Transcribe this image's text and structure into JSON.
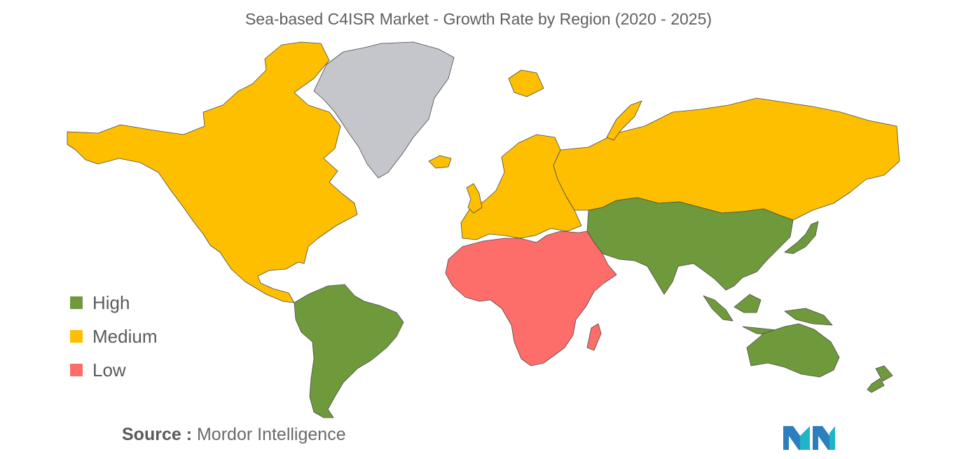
{
  "title": "Sea-based C4ISR Market - Growth Rate by Region (2020 - 2025)",
  "colors": {
    "high": "#6f9a3c",
    "medium": "#fdbf00",
    "low": "#fd6e6a",
    "no_data": "#c4c6cc",
    "border": "#4a4a4a"
  },
  "legend": [
    {
      "key": "high",
      "label": "High",
      "color": "#6f9a3c"
    },
    {
      "key": "medium",
      "label": "Medium",
      "color": "#fdbf00"
    },
    {
      "key": "low",
      "label": "Low",
      "color": "#fd6e6a"
    }
  ],
  "regions": [
    {
      "name": "North America",
      "growth": "Medium"
    },
    {
      "name": "Europe",
      "growth": "Medium"
    },
    {
      "name": "Russia",
      "growth": "Medium"
    },
    {
      "name": "Asia-Pacific",
      "growth": "High"
    },
    {
      "name": "South America",
      "growth": "High"
    },
    {
      "name": "Middle East and Africa",
      "growth": "Low"
    },
    {
      "name": "Greenland",
      "growth": "No data"
    }
  ],
  "source": {
    "label": "Source :",
    "text": "Mordor Intelligence"
  }
}
